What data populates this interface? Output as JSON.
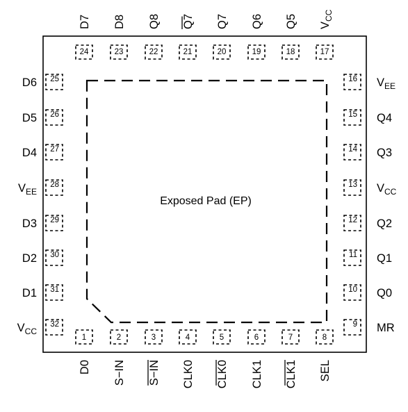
{
  "package": {
    "exposed_pad_label": "Exposed Pad (EP)"
  },
  "pins": {
    "top": [
      {
        "num": "24",
        "name": "D7",
        "overbar": false
      },
      {
        "num": "23",
        "name": "D8",
        "overbar": false
      },
      {
        "num": "22",
        "name": "Q8",
        "overbar": false
      },
      {
        "num": "21",
        "name": "Q7",
        "overbar": true
      },
      {
        "num": "20",
        "name": "Q7",
        "overbar": false
      },
      {
        "num": "19",
        "name": "Q6",
        "overbar": false
      },
      {
        "num": "18",
        "name": "Q5",
        "overbar": false
      },
      {
        "num": "17",
        "name": "V",
        "sub": "CC",
        "overbar": false
      }
    ],
    "left": [
      {
        "num": "25",
        "name": "D6"
      },
      {
        "num": "26",
        "name": "D5"
      },
      {
        "num": "27",
        "name": "D4"
      },
      {
        "num": "28",
        "name": "V",
        "sub": "EE"
      },
      {
        "num": "29",
        "name": "D3"
      },
      {
        "num": "30",
        "name": "D2"
      },
      {
        "num": "31",
        "name": "D1"
      },
      {
        "num": "32",
        "name": "V",
        "sub": "CC"
      }
    ],
    "right": [
      {
        "num": "16",
        "name": "V",
        "sub": "EE"
      },
      {
        "num": "15",
        "name": "Q4"
      },
      {
        "num": "14",
        "name": "Q3"
      },
      {
        "num": "13",
        "name": "V",
        "sub": "CC"
      },
      {
        "num": "12",
        "name": "Q2"
      },
      {
        "num": "11",
        "name": "Q1"
      },
      {
        "num": "10",
        "name": "Q0"
      },
      {
        "num": "9",
        "name": "MR"
      }
    ],
    "bottom": [
      {
        "num": "1",
        "name": "D0",
        "overbar": false
      },
      {
        "num": "2",
        "name": "S−IN",
        "overbar": false
      },
      {
        "num": "3",
        "name": "S−IN",
        "overbar": true
      },
      {
        "num": "4",
        "name": "CLK0",
        "overbar": false
      },
      {
        "num": "5",
        "name": "CLK0",
        "overbar": true
      },
      {
        "num": "6",
        "name": "CLK1",
        "overbar": false
      },
      {
        "num": "7",
        "name": "CLK1",
        "overbar": true
      },
      {
        "num": "8",
        "name": "SEL",
        "overbar": false
      }
    ]
  }
}
